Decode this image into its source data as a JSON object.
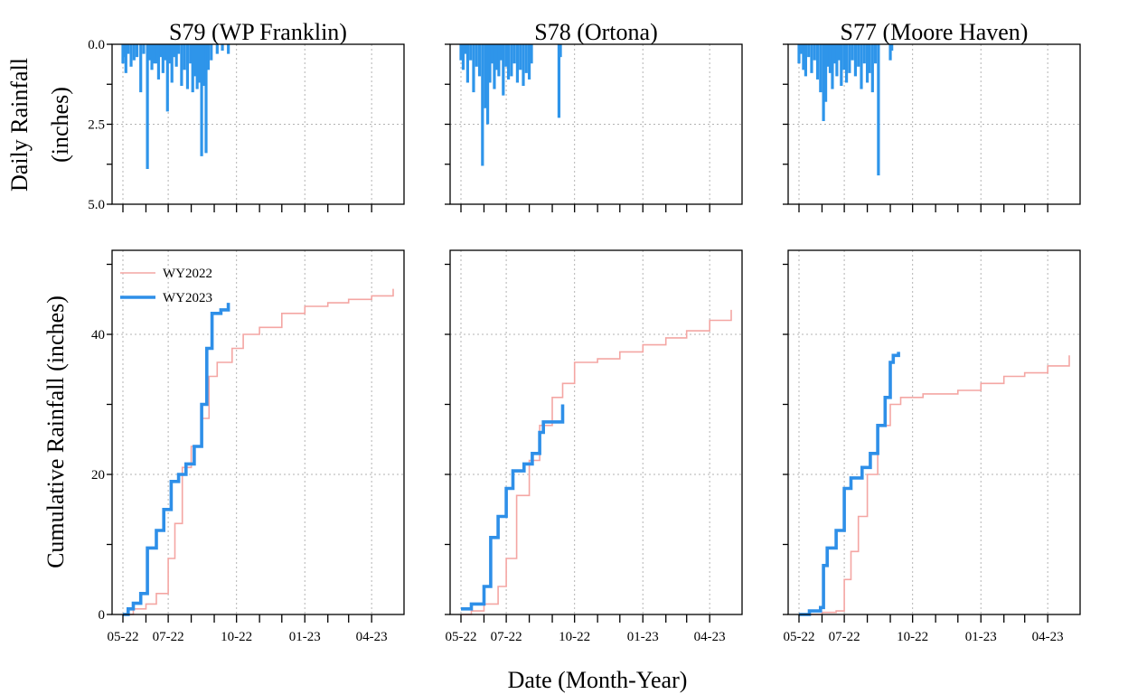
{
  "figure": {
    "ylabel_top": [
      "Daily Rainfall",
      "(inches)"
    ],
    "ylabel_bottom": "Cumulative Rainfall (inches)",
    "xlabel": "Date (Month-Year)"
  },
  "chart_data": {
    "type": "line",
    "x_axis": {
      "type": "date",
      "range": [
        "2022-05-01",
        "2023-04-30"
      ],
      "major_ticks": [
        "2022-05-01",
        "2022-07-01",
        "2022-10-01",
        "2023-01-01",
        "2023-04-01"
      ],
      "major_tick_labels": [
        "05-22",
        "07-22",
        "10-22",
        "01-23",
        "04-23"
      ],
      "minor_ticks": [
        "2022-06-01",
        "2022-08-01",
        "2022-09-01",
        "2022-11-01",
        "2022-12-01",
        "2023-02-01",
        "2023-03-01"
      ]
    },
    "top_row": {
      "type": "bar",
      "ylim": [
        0,
        5
      ],
      "inverted": true,
      "yticks": [
        0,
        2.5,
        5
      ],
      "ytick_labels": [
        "0.0",
        "2.5",
        "5.0"
      ],
      "color": "#2e95ea"
    },
    "bottom_row": {
      "type": "line",
      "ylim": [
        0,
        52
      ],
      "yticks": [
        0,
        20,
        40
      ],
      "ytick_labels": [
        "0",
        "20",
        "40"
      ]
    },
    "grid": true,
    "legend": {
      "placement": "top-left",
      "panel": 0,
      "entries": [
        {
          "label": "WY2022",
          "color": "#f4a6a3"
        },
        {
          "label": "WY2023",
          "color": "#2e8fe8"
        }
      ]
    },
    "panels": [
      {
        "title": "S79 (WP Franklin)",
        "daily_rainfall": [
          [
            "2022-05-01",
            0.6
          ],
          [
            "2022-05-03",
            0.4
          ],
          [
            "2022-05-05",
            0.9
          ],
          [
            "2022-05-08",
            0.3
          ],
          [
            "2022-05-12",
            0.7
          ],
          [
            "2022-05-16",
            0.5
          ],
          [
            "2022-05-20",
            0.4
          ],
          [
            "2022-05-25",
            1.5
          ],
          [
            "2022-05-29",
            0.3
          ],
          [
            "2022-06-03",
            3.9
          ],
          [
            "2022-06-06",
            0.5
          ],
          [
            "2022-06-09",
            0.8
          ],
          [
            "2022-06-12",
            0.6
          ],
          [
            "2022-06-15",
            0.6
          ],
          [
            "2022-06-18",
            1.1
          ],
          [
            "2022-06-21",
            0.4
          ],
          [
            "2022-06-24",
            0.9
          ],
          [
            "2022-06-27",
            0.5
          ],
          [
            "2022-06-30",
            2.1
          ],
          [
            "2022-07-03",
            0.6
          ],
          [
            "2022-07-06",
            1.2
          ],
          [
            "2022-07-09",
            0.4
          ],
          [
            "2022-07-12",
            0.7
          ],
          [
            "2022-07-15",
            0.3
          ],
          [
            "2022-07-19",
            1.3
          ],
          [
            "2022-07-23",
            0.8
          ],
          [
            "2022-07-27",
            1.4
          ],
          [
            "2022-07-31",
            0.6
          ],
          [
            "2022-08-03",
            1.5
          ],
          [
            "2022-08-06",
            1.0
          ],
          [
            "2022-08-09",
            1.4
          ],
          [
            "2022-08-12",
            1.2
          ],
          [
            "2022-08-15",
            3.5
          ],
          [
            "2022-08-18",
            1.3
          ],
          [
            "2022-08-21",
            3.4
          ],
          [
            "2022-08-24",
            0.8
          ],
          [
            "2022-08-28",
            0.5
          ],
          [
            "2022-09-05",
            0.3
          ],
          [
            "2022-09-12",
            0.2
          ],
          [
            "2022-09-20",
            0.3
          ]
        ],
        "cumulative_wy2022": [
          [
            "2022-05-01",
            0
          ],
          [
            "2022-05-15",
            0.8
          ],
          [
            "2022-06-01",
            1.5
          ],
          [
            "2022-06-15",
            3
          ],
          [
            "2022-07-01",
            8
          ],
          [
            "2022-07-10",
            13
          ],
          [
            "2022-07-20",
            21
          ],
          [
            "2022-08-01",
            24
          ],
          [
            "2022-08-15",
            28
          ],
          [
            "2022-08-25",
            34
          ],
          [
            "2022-09-05",
            36
          ],
          [
            "2022-09-25",
            38
          ],
          [
            "2022-10-10",
            40
          ],
          [
            "2022-11-01",
            41
          ],
          [
            "2022-12-01",
            43
          ],
          [
            "2023-01-01",
            44
          ],
          [
            "2023-02-01",
            44.5
          ],
          [
            "2023-03-01",
            45
          ],
          [
            "2023-04-01",
            45.5
          ],
          [
            "2023-04-30",
            46.5
          ]
        ],
        "cumulative_wy2023": [
          [
            "2022-05-01",
            0
          ],
          [
            "2022-05-08",
            0.8
          ],
          [
            "2022-05-15",
            1.6
          ],
          [
            "2022-05-25",
            3
          ],
          [
            "2022-06-03",
            9.5
          ],
          [
            "2022-06-15",
            12
          ],
          [
            "2022-06-25",
            15
          ],
          [
            "2022-07-05",
            19
          ],
          [
            "2022-07-15",
            20
          ],
          [
            "2022-07-25",
            21.5
          ],
          [
            "2022-08-05",
            24
          ],
          [
            "2022-08-15",
            30
          ],
          [
            "2022-08-22",
            38
          ],
          [
            "2022-08-29",
            43
          ],
          [
            "2022-09-10",
            43.5
          ],
          [
            "2022-09-20",
            44.5
          ]
        ]
      },
      {
        "title": "S78 (Ortona)",
        "daily_rainfall": [
          [
            "2022-05-01",
            0.5
          ],
          [
            "2022-05-04",
            0.8
          ],
          [
            "2022-05-07",
            0.3
          ],
          [
            "2022-05-10",
            1.2
          ],
          [
            "2022-05-14",
            0.5
          ],
          [
            "2022-05-18",
            1.5
          ],
          [
            "2022-05-22",
            0.7
          ],
          [
            "2022-05-26",
            1.0
          ],
          [
            "2022-05-30",
            3.8
          ],
          [
            "2022-06-03",
            2.0
          ],
          [
            "2022-06-06",
            2.5
          ],
          [
            "2022-06-09",
            1.2
          ],
          [
            "2022-06-12",
            0.6
          ],
          [
            "2022-06-15",
            1.4
          ],
          [
            "2022-06-18",
            0.8
          ],
          [
            "2022-06-21",
            1.0
          ],
          [
            "2022-06-24",
            0.5
          ],
          [
            "2022-06-27",
            1.6
          ],
          [
            "2022-07-01",
            0.7
          ],
          [
            "2022-07-04",
            1.1
          ],
          [
            "2022-07-08",
            1.0
          ],
          [
            "2022-07-12",
            0.6
          ],
          [
            "2022-07-16",
            1.2
          ],
          [
            "2022-07-20",
            0.8
          ],
          [
            "2022-07-24",
            1.3
          ],
          [
            "2022-07-28",
            0.9
          ],
          [
            "2022-08-01",
            1.1
          ],
          [
            "2022-08-04",
            0.6
          ],
          [
            "2022-09-10",
            2.3
          ],
          [
            "2022-09-12",
            0.4
          ]
        ],
        "cumulative_wy2022": [
          [
            "2022-05-01",
            0
          ],
          [
            "2022-05-15",
            0.5
          ],
          [
            "2022-06-01",
            1.5
          ],
          [
            "2022-06-20",
            4
          ],
          [
            "2022-07-01",
            8
          ],
          [
            "2022-07-15",
            17
          ],
          [
            "2022-08-01",
            22
          ],
          [
            "2022-08-15",
            27
          ],
          [
            "2022-09-01",
            31
          ],
          [
            "2022-09-15",
            33
          ],
          [
            "2022-10-01",
            36
          ],
          [
            "2022-11-01",
            36.5
          ],
          [
            "2022-12-01",
            37.5
          ],
          [
            "2023-01-01",
            38.5
          ],
          [
            "2023-02-01",
            39.5
          ],
          [
            "2023-03-01",
            40.5
          ],
          [
            "2023-04-01",
            42
          ],
          [
            "2023-04-30",
            43.5
          ]
        ],
        "cumulative_wy2023": [
          [
            "2022-05-01",
            0.8
          ],
          [
            "2022-05-15",
            1.5
          ],
          [
            "2022-06-01",
            4
          ],
          [
            "2022-06-10",
            11
          ],
          [
            "2022-06-20",
            14
          ],
          [
            "2022-07-01",
            18
          ],
          [
            "2022-07-10",
            20.5
          ],
          [
            "2022-07-25",
            21.5
          ],
          [
            "2022-08-05",
            23
          ],
          [
            "2022-08-15",
            26
          ],
          [
            "2022-08-20",
            27.5
          ],
          [
            "2022-09-10",
            27.5
          ],
          [
            "2022-09-15",
            30
          ]
        ]
      },
      {
        "title": "S77 (Moore Haven)",
        "daily_rainfall": [
          [
            "2022-05-01",
            0.6
          ],
          [
            "2022-05-04",
            0.3
          ],
          [
            "2022-05-07",
            0.8
          ],
          [
            "2022-05-10",
            1.0
          ],
          [
            "2022-05-14",
            0.4
          ],
          [
            "2022-05-18",
            0.9
          ],
          [
            "2022-05-22",
            0.5
          ],
          [
            "2022-05-26",
            1.1
          ],
          [
            "2022-05-30",
            1.5
          ],
          [
            "2022-06-03",
            2.4
          ],
          [
            "2022-06-06",
            1.8
          ],
          [
            "2022-06-09",
            0.7
          ],
          [
            "2022-06-12",
            0.9
          ],
          [
            "2022-06-15",
            1.4
          ],
          [
            "2022-06-18",
            0.6
          ],
          [
            "2022-06-21",
            1.0
          ],
          [
            "2022-06-24",
            0.5
          ],
          [
            "2022-06-27",
            1.3
          ],
          [
            "2022-07-01",
            0.8
          ],
          [
            "2022-07-04",
            1.2
          ],
          [
            "2022-07-08",
            0.9
          ],
          [
            "2022-07-12",
            0.5
          ],
          [
            "2022-07-16",
            1.0
          ],
          [
            "2022-07-20",
            0.7
          ],
          [
            "2022-07-24",
            1.4
          ],
          [
            "2022-07-28",
            0.6
          ],
          [
            "2022-08-01",
            1.2
          ],
          [
            "2022-08-04",
            0.9
          ],
          [
            "2022-08-08",
            1.5
          ],
          [
            "2022-08-12",
            0.6
          ],
          [
            "2022-08-16",
            4.1
          ],
          [
            "2022-09-01",
            0.5
          ],
          [
            "2022-09-03",
            0.2
          ]
        ],
        "cumulative_wy2022": [
          [
            "2022-05-01",
            0
          ],
          [
            "2022-06-01",
            0.3
          ],
          [
            "2022-06-20",
            0.5
          ],
          [
            "2022-07-01",
            5
          ],
          [
            "2022-07-10",
            9
          ],
          [
            "2022-07-20",
            14
          ],
          [
            "2022-08-01",
            20
          ],
          [
            "2022-08-15",
            27
          ],
          [
            "2022-09-01",
            30
          ],
          [
            "2022-09-15",
            31
          ],
          [
            "2022-10-15",
            31.5
          ],
          [
            "2022-12-01",
            32
          ],
          [
            "2023-01-01",
            33
          ],
          [
            "2023-02-01",
            34
          ],
          [
            "2023-03-01",
            34.5
          ],
          [
            "2023-04-01",
            35.5
          ],
          [
            "2023-04-30",
            37
          ]
        ],
        "cumulative_wy2023": [
          [
            "2022-05-01",
            0
          ],
          [
            "2022-05-15",
            0.5
          ],
          [
            "2022-05-30",
            1
          ],
          [
            "2022-06-03",
            7
          ],
          [
            "2022-06-08",
            9.5
          ],
          [
            "2022-06-20",
            12
          ],
          [
            "2022-07-01",
            18
          ],
          [
            "2022-07-10",
            19.5
          ],
          [
            "2022-07-25",
            21
          ],
          [
            "2022-08-05",
            23
          ],
          [
            "2022-08-15",
            27
          ],
          [
            "2022-08-25",
            31
          ],
          [
            "2022-09-01",
            36
          ],
          [
            "2022-09-05",
            37
          ],
          [
            "2022-09-12",
            37.5
          ]
        ]
      }
    ]
  }
}
